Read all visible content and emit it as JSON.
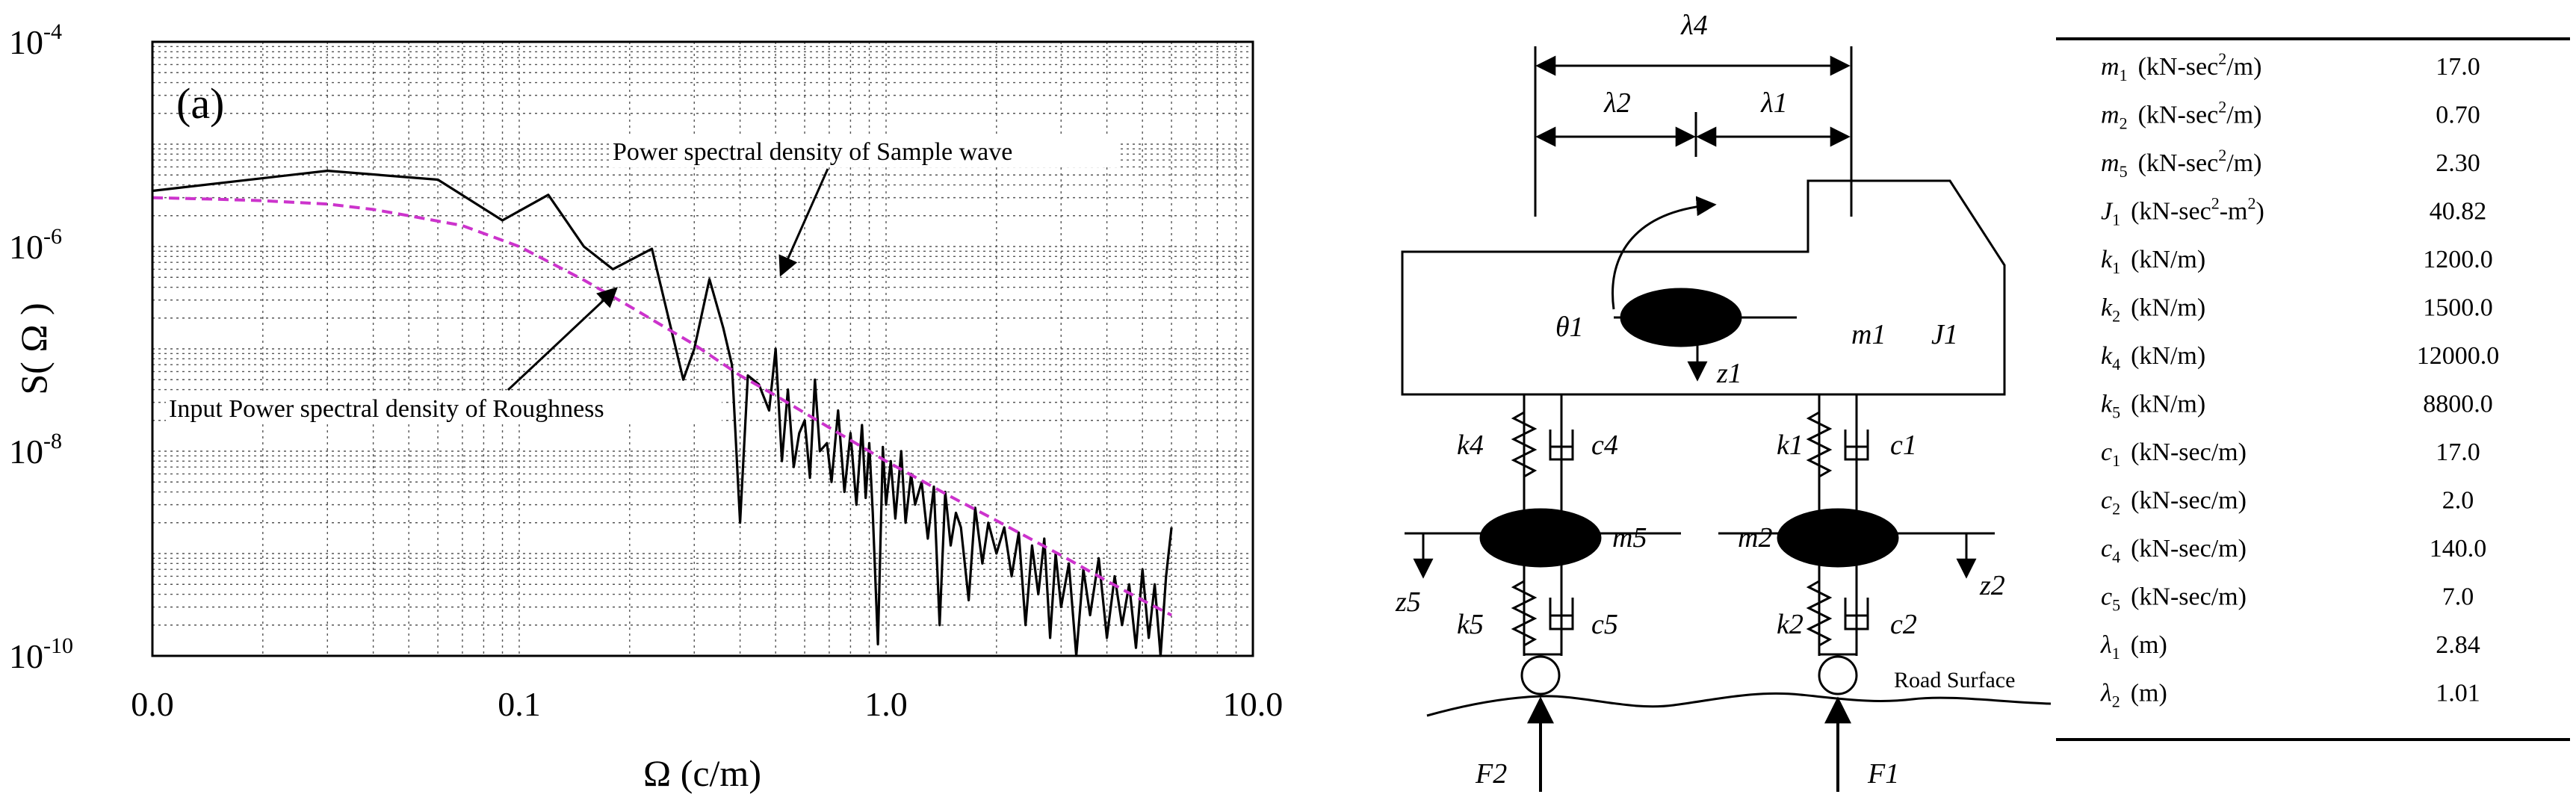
{
  "chart_data": {
    "type": "line",
    "panel_label": "(a)",
    "xlabel": "Ω (c/m)",
    "ylabel": "S( Ω )",
    "x_scale": "log",
    "y_scale": "log",
    "xlim": [
      0.01,
      10.0
    ],
    "ylim": [
      1e-10,
      0.0001
    ],
    "grid": true,
    "x_tick_labels": [
      {
        "v": 0.01,
        "t": "0.0"
      },
      {
        "v": 0.1,
        "t": "0.1"
      },
      {
        "v": 1.0,
        "t": "1.0"
      },
      {
        "v": 10.0,
        "t": "10.0"
      }
    ],
    "y_tick_labels": [
      {
        "v": 1e-10,
        "base": "10",
        "exp": "-10"
      },
      {
        "v": 1e-08,
        "base": "10",
        "exp": "-8"
      },
      {
        "v": 1e-06,
        "base": "10",
        "exp": "-6"
      },
      {
        "v": 0.0001,
        "base": "10",
        "exp": "-4"
      }
    ],
    "annotations": [
      {
        "text": "Power spectral density of Sample wave",
        "anchor": [
          0.33,
          4.5e-07
        ]
      },
      {
        "text": "Input Power spectral density of Roughness",
        "anchor": [
          0.15,
          4e-07
        ]
      }
    ],
    "series": [
      {
        "color": "#000000",
        "style": "solid",
        "x": [
          0.01,
          0.03,
          0.06,
          0.09,
          0.12,
          0.15,
          0.18,
          0.23,
          0.28,
          0.3,
          0.33,
          0.36,
          0.38,
          0.4,
          0.42,
          0.45,
          0.48,
          0.5,
          0.52,
          0.54,
          0.56,
          0.58,
          0.6,
          0.62,
          0.64,
          0.66,
          0.69,
          0.71,
          0.74,
          0.77,
          0.8,
          0.83,
          0.86,
          0.88,
          0.9,
          0.92,
          0.95,
          0.98,
          1.0,
          1.03,
          1.06,
          1.1,
          1.13,
          1.17,
          1.2,
          1.25,
          1.3,
          1.35,
          1.4,
          1.45,
          1.5,
          1.55,
          1.6,
          1.68,
          1.75,
          1.83,
          1.9,
          2.0,
          2.1,
          2.2,
          2.3,
          2.4,
          2.5,
          2.6,
          2.7,
          2.8,
          2.9,
          3.0,
          3.15,
          3.3,
          3.45,
          3.6,
          3.8,
          4.0,
          4.2,
          4.4,
          4.6,
          4.8,
          5.0,
          5.2,
          5.4,
          5.6,
          5.8,
          6.0
        ],
        "y": [
          3.5e-06,
          5.5e-06,
          4.5e-06,
          1.8e-06,
          3.2e-06,
          1e-06,
          6e-07,
          9.5e-07,
          5e-08,
          1e-07,
          4.8e-07,
          1.6e-07,
          7e-08,
          2e-09,
          5.5e-08,
          4.5e-08,
          2.5e-08,
          1e-07,
          8e-09,
          4e-08,
          7e-09,
          1.5e-08,
          2e-08,
          5.5e-09,
          5e-08,
          1e-08,
          1.2e-08,
          5e-09,
          2.5e-08,
          4e-09,
          1.5e-08,
          3e-09,
          1.8e-08,
          3.5e-09,
          1.2e-08,
          2.5e-09,
          1.3e-10,
          1.1e-08,
          3e-09,
          8e-09,
          2.2e-09,
          1e-08,
          2e-09,
          6e-09,
          3e-09,
          5e-09,
          1.4e-09,
          4.5e-09,
          2e-10,
          4e-09,
          1.2e-09,
          2.5e-09,
          1.8e-09,
          3.5e-10,
          2.8e-09,
          8e-10,
          2e-09,
          1e-09,
          1.8e-09,
          6e-10,
          1.6e-09,
          2e-10,
          1.2e-09,
          4e-10,
          1.4e-09,
          1.5e-10,
          1e-09,
          3e-10,
          8e-10,
          1e-10,
          7e-10,
          2.5e-10,
          9e-10,
          1.5e-10,
          6e-10,
          2e-10,
          5e-10,
          1.2e-10,
          7e-10,
          1.5e-10,
          5e-10,
          1e-10,
          6e-10,
          1.8e-09
        ]
      },
      {
        "color": "#cc33cc",
        "style": "dashed",
        "x": [
          0.01,
          0.015,
          0.02,
          0.03,
          0.04,
          0.05,
          0.07,
          0.1,
          0.15,
          0.2,
          0.3,
          0.4,
          0.5,
          0.7,
          1.0,
          1.5,
          2.0,
          3.0,
          4.0,
          5.0,
          6.0
        ],
        "y": [
          3e-06,
          2.9e-06,
          2.8e-06,
          2.6e-06,
          2.3e-06,
          2e-06,
          1.6e-06,
          1e-06,
          4.7e-07,
          2.6e-07,
          1.1e-07,
          5.5e-08,
          3.5e-08,
          1.7e-08,
          8e-09,
          3.6e-09,
          2.1e-09,
          9.6e-10,
          5.4e-10,
          3.5e-10,
          2.5e-10
        ]
      }
    ]
  },
  "diagram": {
    "labels": {
      "lambda4": "λ4",
      "lambda2": "λ2",
      "lambda1": "λ1",
      "theta1": "θ1",
      "z1": "z1",
      "m1": "m1",
      "J1": "J1",
      "k4": "k4",
      "c4": "c4",
      "k1": "k1",
      "c1": "c1",
      "m5": "m5",
      "m2": "m2",
      "z5": "z5",
      "z2": "z2",
      "k5": "k5",
      "c5": "c5",
      "k2": "k2",
      "c2": "c2",
      "road": "Road Surface",
      "F2": "F2",
      "F1": "F1"
    }
  },
  "param_table": {
    "rows": [
      {
        "sym": "m",
        "sub": "1",
        "unit": "(kN-sec",
        "sup": "2",
        "unit_end": "/m)",
        "value": "17.0"
      },
      {
        "sym": "m",
        "sub": "2",
        "unit": "(kN-sec",
        "sup": "2",
        "unit_end": "/m)",
        "value": "0.70"
      },
      {
        "sym": "m",
        "sub": "5",
        "unit": "(kN-sec",
        "sup": "2",
        "unit_end": "/m)",
        "value": "2.30"
      },
      {
        "sym": "J",
        "sub": "1",
        "unit": "(kN-sec",
        "sup": "2",
        "unit_end": "-m",
        "sup2": "2",
        "unit_end2": ")",
        "value": "40.82"
      },
      {
        "sym": "k",
        "sub": "1",
        "unit": "(kN/m)",
        "value": "1200.0"
      },
      {
        "sym": "k",
        "sub": "2",
        "unit": "(kN/m)",
        "value": "1500.0"
      },
      {
        "sym": "k",
        "sub": "4",
        "unit": "(kN/m)",
        "value": "12000.0"
      },
      {
        "sym": "k",
        "sub": "5",
        "unit": "(kN/m)",
        "value": "8800.0"
      },
      {
        "sym": "c",
        "sub": "1",
        "unit": "(kN-sec/m)",
        "value": "17.0"
      },
      {
        "sym": "c",
        "sub": "2",
        "unit": "(kN-sec/m)",
        "value": "2.0"
      },
      {
        "sym": "c",
        "sub": "4",
        "unit": "(kN-sec/m)",
        "value": "140.0"
      },
      {
        "sym": "c",
        "sub": "5",
        "unit": "(kN-sec/m)",
        "value": "7.0"
      },
      {
        "sym": "λ",
        "sub": "1",
        "unit": "(m)",
        "value": "2.84"
      },
      {
        "sym": "λ",
        "sub": "2",
        "unit": "(m)",
        "value": "1.01"
      }
    ]
  }
}
